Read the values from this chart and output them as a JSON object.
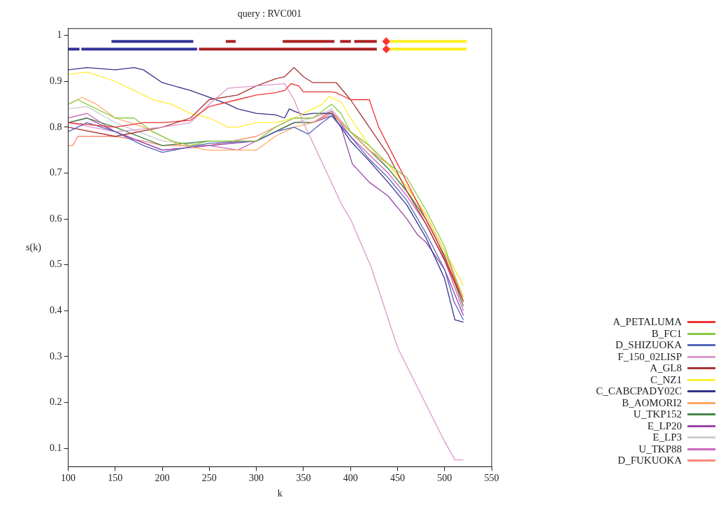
{
  "chart_data": {
    "type": "line",
    "title": "query : RVC001",
    "xlabel": "k",
    "ylabel": "s(k)",
    "xlim": [
      100,
      550
    ],
    "ylim": [
      0.06,
      1.015
    ],
    "xticks": [
      100,
      150,
      200,
      250,
      300,
      350,
      400,
      450,
      500,
      550
    ],
    "yticks": [
      0.1,
      0.2,
      0.3,
      0.4,
      0.5,
      0.6,
      0.7,
      0.8,
      0.9,
      1
    ],
    "grid": false,
    "legend": "bottom right",
    "series": [
      {
        "name": "A_PETALUMA",
        "color": "#ee3333",
        "x": [
          100,
          150,
          180,
          200,
          230,
          250,
          280,
          300,
          320,
          330,
          337,
          345,
          350,
          360,
          380,
          385,
          400,
          410,
          420,
          430,
          450,
          470,
          490,
          510,
          520
        ],
        "values": [
          0.81,
          0.8,
          0.81,
          0.81,
          0.815,
          0.845,
          0.86,
          0.87,
          0.875,
          0.88,
          0.895,
          0.89,
          0.877,
          0.877,
          0.877,
          0.875,
          0.86,
          0.86,
          0.86,
          0.8,
          0.72,
          0.64,
          0.56,
          0.47,
          0.42
        ]
      },
      {
        "name": "B_FC1",
        "color": "#88cc44",
        "x": [
          100,
          110,
          120,
          150,
          170,
          190,
          210,
          230,
          250,
          300,
          320,
          340,
          360,
          380,
          390,
          400,
          420,
          440,
          460,
          480,
          500,
          520
        ],
        "values": [
          0.85,
          0.86,
          0.85,
          0.82,
          0.82,
          0.79,
          0.77,
          0.76,
          0.77,
          0.77,
          0.8,
          0.82,
          0.82,
          0.85,
          0.83,
          0.79,
          0.76,
          0.72,
          0.69,
          0.62,
          0.54,
          0.42
        ]
      },
      {
        "name": "D_SHIZUOKA",
        "color": "#5566bb",
        "x": [
          100,
          120,
          150,
          180,
          200,
          250,
          300,
          320,
          340,
          350,
          355,
          370,
          380,
          400,
          420,
          440,
          460,
          480,
          500,
          510,
          520
        ],
        "values": [
          0.79,
          0.81,
          0.79,
          0.76,
          0.745,
          0.765,
          0.77,
          0.79,
          0.8,
          0.79,
          0.785,
          0.81,
          0.825,
          0.78,
          0.73,
          0.69,
          0.64,
          0.57,
          0.49,
          0.42,
          0.38
        ]
      },
      {
        "name": "F_150_02LISP",
        "color": "#dd99cc",
        "x": [
          100,
          150,
          200,
          230,
          250,
          270,
          300,
          330,
          340,
          350,
          391,
          400,
          422,
          450,
          500,
          511,
          520
        ],
        "values": [
          0.81,
          0.79,
          0.8,
          0.81,
          0.85,
          0.885,
          0.89,
          0.895,
          0.86,
          0.81,
          0.63,
          0.6,
          0.495,
          0.32,
          0.115,
          0.075,
          0.075
        ]
      },
      {
        "name": "A_GL8",
        "color": "#aa3333",
        "x": [
          100,
          150,
          200,
          230,
          250,
          280,
          300,
          320,
          330,
          340,
          350,
          360,
          380,
          385,
          400,
          420,
          440,
          460,
          480,
          500,
          520
        ],
        "values": [
          0.8,
          0.78,
          0.8,
          0.82,
          0.86,
          0.87,
          0.89,
          0.905,
          0.91,
          0.93,
          0.91,
          0.897,
          0.897,
          0.897,
          0.86,
          0.8,
          0.74,
          0.66,
          0.59,
          0.51,
          0.42
        ]
      },
      {
        "name": "C_NZ1",
        "color": "#ffee33",
        "x": [
          100,
          120,
          150,
          170,
          190,
          210,
          230,
          250,
          270,
          280,
          300,
          320,
          340,
          350,
          370,
          377,
          390,
          400,
          420,
          440,
          460,
          480,
          500,
          520
        ],
        "values": [
          0.915,
          0.92,
          0.9,
          0.88,
          0.86,
          0.85,
          0.83,
          0.82,
          0.8,
          0.8,
          0.81,
          0.81,
          0.82,
          0.83,
          0.85,
          0.867,
          0.855,
          0.82,
          0.76,
          0.72,
          0.67,
          0.61,
          0.53,
          0.455
        ]
      },
      {
        "name": "C_CABCPADY02C",
        "color": "#333388",
        "x": [
          100,
          120,
          150,
          170,
          180,
          200,
          230,
          250,
          270,
          280,
          300,
          320,
          330,
          335,
          340,
          350,
          360,
          380,
          390,
          400,
          420,
          440,
          460,
          480,
          500,
          511,
          520
        ],
        "values": [
          0.925,
          0.93,
          0.925,
          0.93,
          0.925,
          0.897,
          0.88,
          0.865,
          0.85,
          0.84,
          0.83,
          0.827,
          0.82,
          0.84,
          0.835,
          0.827,
          0.83,
          0.83,
          0.8,
          0.77,
          0.726,
          0.68,
          0.63,
          0.56,
          0.47,
          0.38,
          0.375
        ]
      },
      {
        "name": "B_AOMORI2",
        "color": "#ffaa66",
        "x": [
          100,
          115,
          130,
          150,
          180,
          200,
          220,
          250,
          300,
          320,
          340,
          360,
          380,
          400,
          420,
          440,
          460,
          480,
          500,
          520
        ],
        "values": [
          0.85,
          0.865,
          0.85,
          0.82,
          0.8,
          0.78,
          0.76,
          0.75,
          0.75,
          0.78,
          0.8,
          0.81,
          0.83,
          0.79,
          0.75,
          0.72,
          0.67,
          0.61,
          0.53,
          0.43
        ]
      },
      {
        "name": "U_TKP152",
        "color": "#448844",
        "x": [
          100,
          120,
          150,
          200,
          250,
          300,
          340,
          360,
          380,
          400,
          420,
          440,
          460,
          480,
          500,
          520
        ],
        "values": [
          0.81,
          0.82,
          0.8,
          0.76,
          0.77,
          0.77,
          0.81,
          0.81,
          0.83,
          0.79,
          0.75,
          0.71,
          0.66,
          0.6,
          0.52,
          0.41
        ]
      },
      {
        "name": "E_LP20",
        "color": "#9944aa",
        "x": [
          100,
          120,
          150,
          200,
          250,
          300,
          340,
          360,
          380,
          390,
          402,
          420,
          440,
          460,
          471,
          480,
          500,
          520
        ],
        "values": [
          0.81,
          0.82,
          0.79,
          0.75,
          0.76,
          0.77,
          0.81,
          0.81,
          0.825,
          0.8,
          0.72,
          0.68,
          0.65,
          0.6,
          0.566,
          0.55,
          0.49,
          0.39
        ]
      },
      {
        "name": "E_LP3",
        "color": "#cccccc",
        "x": [
          100,
          120,
          150,
          200,
          250,
          300,
          340,
          360,
          380,
          400,
          420,
          440,
          460,
          480,
          500,
          520
        ],
        "values": [
          0.84,
          0.845,
          0.81,
          0.77,
          0.76,
          0.77,
          0.81,
          0.82,
          0.84,
          0.79,
          0.76,
          0.71,
          0.66,
          0.6,
          0.53,
          0.455
        ]
      },
      {
        "name": "U_TKP88",
        "color": "#cc66bb",
        "x": [
          100,
          120,
          150,
          200,
          250,
          280,
          300,
          340,
          360,
          380,
          400,
          420,
          440,
          460,
          480,
          500,
          520
        ],
        "values": [
          0.82,
          0.83,
          0.79,
          0.75,
          0.76,
          0.75,
          0.77,
          0.81,
          0.81,
          0.835,
          0.78,
          0.74,
          0.7,
          0.65,
          0.59,
          0.51,
          0.4
        ]
      },
      {
        "name": "D_FUKUOKA",
        "color": "#ff8877",
        "x": [
          100,
          105,
          110,
          120,
          150,
          180,
          200,
          250,
          300,
          320,
          340,
          360,
          380,
          400,
          420,
          440,
          460,
          480,
          500,
          520
        ],
        "values": [
          0.76,
          0.76,
          0.78,
          0.78,
          0.78,
          0.77,
          0.76,
          0.76,
          0.78,
          0.8,
          0.82,
          0.82,
          0.835,
          0.79,
          0.75,
          0.72,
          0.67,
          0.61,
          0.53,
          0.42
        ]
      },
      {
        "color": "#333399",
        "x": [
          146,
          233
        ],
        "values": [
          0.987,
          0.987
        ]
      },
      {
        "color": "#333399",
        "x": [
          100,
          112
        ],
        "values": [
          0.97,
          0.97
        ]
      },
      {
        "color": "#333399",
        "x": [
          114,
          237
        ],
        "values": [
          0.97,
          0.97
        ]
      },
      {
        "color": "#aa2222",
        "x": [
          267.5,
          278
        ],
        "values": [
          0.987,
          0.987
        ]
      },
      {
        "color": "#aa2222",
        "x": [
          328,
          383
        ],
        "values": [
          0.987,
          0.987
        ]
      },
      {
        "color": "#aa2222",
        "x": [
          389,
          400.5
        ],
        "values": [
          0.987,
          0.987
        ]
      },
      {
        "color": "#aa2222",
        "x": [
          404,
          428
        ],
        "values": [
          0.987,
          0.987
        ]
      },
      {
        "color": "#aa2222",
        "x": [
          239,
          428
        ],
        "values": [
          0.97,
          0.97
        ]
      },
      {
        "type": "scatter",
        "marker": "diamond",
        "color": "#ff3333",
        "x": [
          438,
          438
        ],
        "values": [
          0.987,
          0.97
        ]
      },
      {
        "color": "#ffee22",
        "x": [
          441.7,
          523.5
        ],
        "values": [
          0.987,
          0.987
        ]
      },
      {
        "color": "#ffee22",
        "x": [
          441.7,
          523.5
        ],
        "values": [
          0.97,
          0.97
        ]
      }
    ]
  }
}
